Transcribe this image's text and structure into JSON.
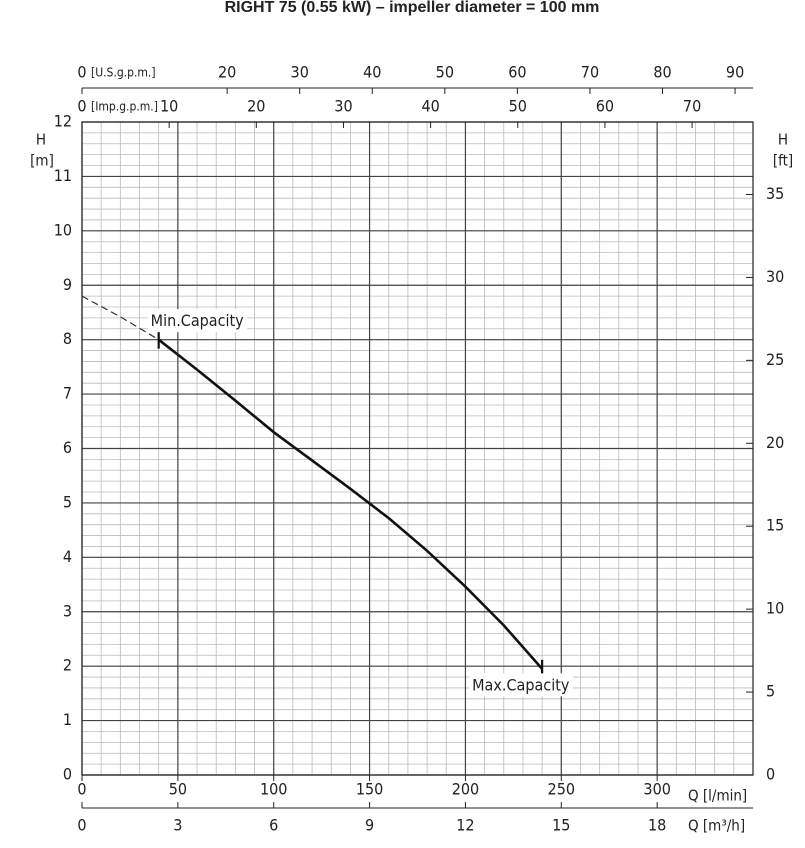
{
  "chart_data": {
    "type": "line",
    "title": "RIGHT 75 (0.55 kW) – impeller diameter = 100 mm",
    "xlim": [
      0,
      350
    ],
    "xticks": [
      0,
      50,
      100,
      150,
      200,
      250,
      300
    ],
    "xlabel": "Q [l/min]",
    "ylim": [
      0,
      12
    ],
    "yticks": [
      0,
      1,
      2,
      3,
      4,
      5,
      6,
      7,
      8,
      9,
      10,
      11,
      12
    ],
    "ylabel": [
      "H",
      "[m]"
    ],
    "grid": true,
    "minor_grid": {
      "x_step": 10,
      "y_step": 0.2
    },
    "secondary_axes": [
      {
        "position": "top",
        "label": "[U.S.g.p.m.]",
        "lim": [
          0,
          92.47
        ],
        "ticks": [
          0,
          20,
          30,
          40,
          50,
          60,
          70,
          80,
          90
        ]
      },
      {
        "position": "top-inner",
        "label": "[Imp.g.p.m.]",
        "lim": [
          0,
          76.99
        ],
        "ticks": [
          0,
          10,
          20,
          30,
          40,
          50,
          60,
          70
        ]
      },
      {
        "position": "bottom-outer",
        "label": "Q [m³/h]",
        "lim": [
          0,
          21
        ],
        "ticks": [
          0,
          3,
          6,
          9,
          12,
          15,
          18
        ]
      },
      {
        "position": "right",
        "label": [
          "H",
          "[ft]"
        ],
        "lim": [
          0,
          39.37
        ],
        "ticks": [
          0,
          5,
          10,
          15,
          20,
          25,
          30,
          35
        ]
      }
    ],
    "series": [
      {
        "style": "dashed",
        "color": "#333333",
        "x": [
          0,
          20,
          40
        ],
        "values": [
          8.8,
          8.42,
          8.0
        ]
      },
      {
        "style": "solid",
        "color": "#111111",
        "x": [
          40,
          60,
          80,
          100,
          120,
          140,
          160,
          180,
          200,
          220,
          240
        ],
        "values": [
          8.0,
          7.45,
          6.88,
          6.3,
          5.78,
          5.26,
          4.72,
          4.12,
          3.46,
          2.75,
          1.95
        ]
      }
    ],
    "annotations": [
      {
        "text": "Min.Capacity",
        "x": 40,
        "y": 8.0,
        "position": "above-right"
      },
      {
        "text": "Max.Capacity",
        "x": 240,
        "y": 1.95,
        "position": "below-left"
      }
    ]
  }
}
